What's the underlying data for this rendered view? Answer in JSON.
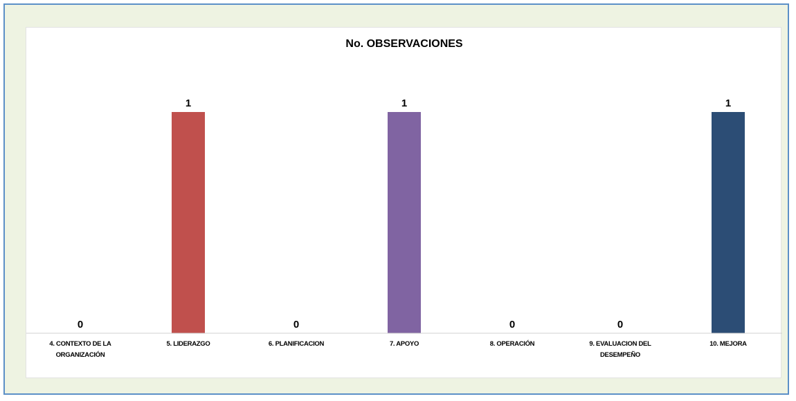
{
  "chart_data": {
    "type": "bar",
    "title": "No. OBSERVACIONES",
    "xlabel": "",
    "ylabel": "",
    "categories": [
      "4. CONTEXTO DE LA ORGANIZACIÓN",
      "5. LIDERAZGO",
      "6. PLANIFICACION",
      "7. APOYO",
      "8. OPERACIÓN",
      "9. EVALUACION DEL DESEMPEÑO",
      "10. MEJORA"
    ],
    "category_lines": [
      [
        "4. CONTEXTO DE LA",
        "ORGANIZACIÓN"
      ],
      [
        "5. LIDERAZGO"
      ],
      [
        "6. PLANIFICACION"
      ],
      [
        "7. APOYO"
      ],
      [
        "8. OPERACIÓN"
      ],
      [
        "9. EVALUACION DEL",
        "DESEMPEÑO"
      ],
      [
        "10. MEJORA"
      ]
    ],
    "values": [
      0,
      1,
      0,
      1,
      0,
      0,
      1
    ],
    "colors": [
      "#4f81bd",
      "#c0504d",
      "#9bbb59",
      "#8064a2",
      "#4bacc6",
      "#f79646",
      "#2c4d75"
    ],
    "ylim": [
      0,
      1
    ],
    "grid": false,
    "data_labels": true,
    "legend": "none"
  }
}
